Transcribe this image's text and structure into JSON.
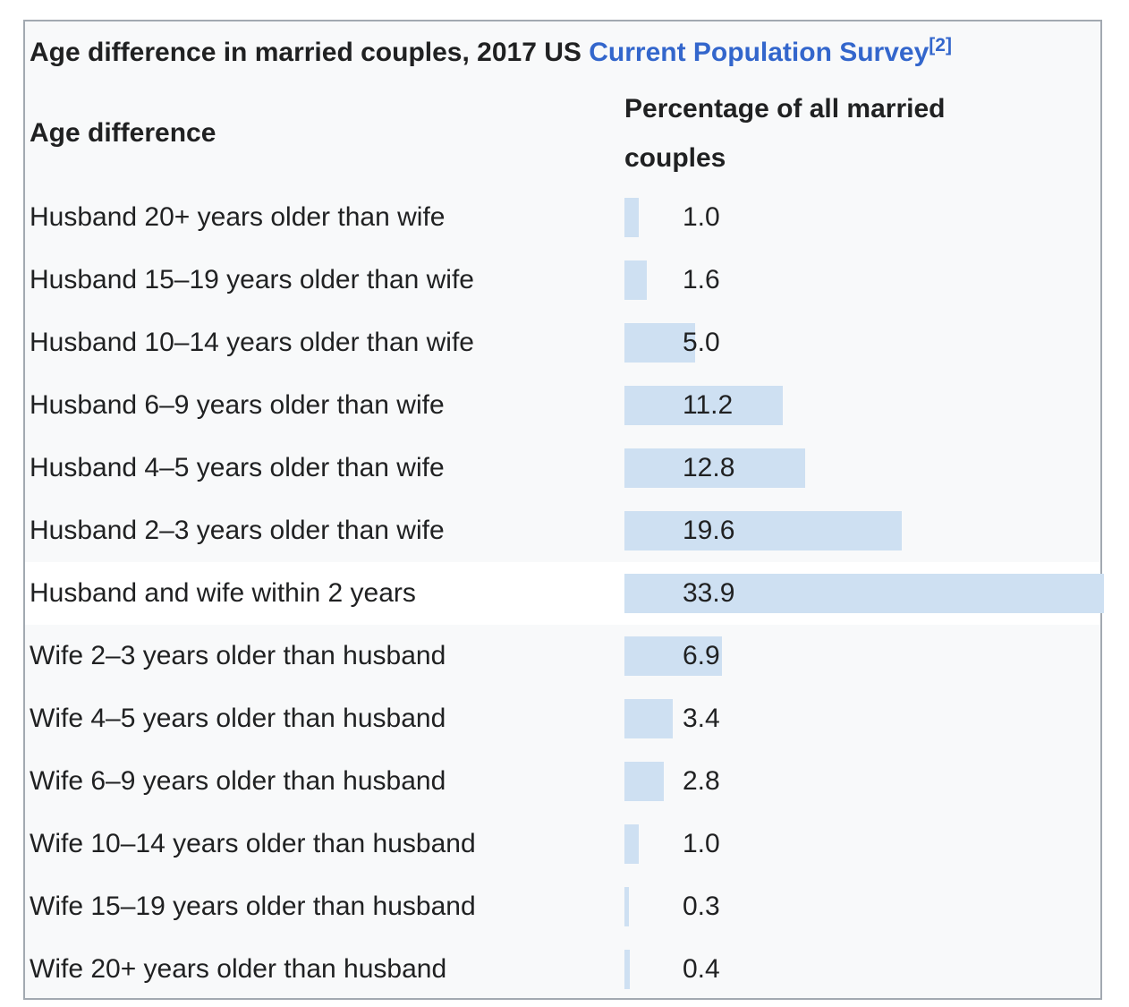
{
  "table": {
    "title_prefix": "Age difference in married couples, 2017 US",
    "title_link": "Current Population Survey",
    "title_ref": "[2]",
    "col1_header": "Age difference",
    "col2_header_line1": "Percentage of all married",
    "col2_header_line2": "couples",
    "colors": {
      "table_background": "#f8f9fa",
      "highlight_row_background": "#ffffff",
      "bar_fill": "#cee0f2",
      "border": "#a2a9b1",
      "text": "#202122",
      "link": "#3366cc"
    }
  },
  "chart_data": {
    "type": "bar",
    "orientation": "horizontal",
    "title": "Age difference in married couples, 2017 US Current Population Survey",
    "reference_marker": "[2]",
    "category_axis_label": "Age difference",
    "value_axis_label": "Percentage of all married couples",
    "unit": "%",
    "xlim": [
      0,
      34
    ],
    "grid": false,
    "legend": false,
    "highlight_index": 6,
    "categories": [
      "Husband 20+ years older than wife",
      "Husband 15–19 years older than wife",
      "Husband 10–14 years older than wife",
      "Husband 6–9 years older than wife",
      "Husband 4–5 years older than wife",
      "Husband 2–3 years older than wife",
      "Husband and wife within 2 years",
      "Wife 2–3 years older than husband",
      "Wife 4–5 years older than husband",
      "Wife 6–9 years older than husband",
      "Wife 10–14 years older than husband",
      "Wife 15–19 years older than husband",
      "Wife 20+ years older than husband"
    ],
    "values": [
      1.0,
      1.6,
      5.0,
      11.2,
      12.8,
      19.6,
      33.9,
      6.9,
      3.4,
      2.8,
      1.0,
      0.3,
      0.4
    ],
    "display_values": [
      "1.0",
      "1.6",
      "5.0",
      "11.2",
      "12.8",
      "19.6",
      "33.9",
      "6.9",
      "3.4",
      "2.8",
      "1.0",
      "0.3",
      "0.4"
    ]
  }
}
